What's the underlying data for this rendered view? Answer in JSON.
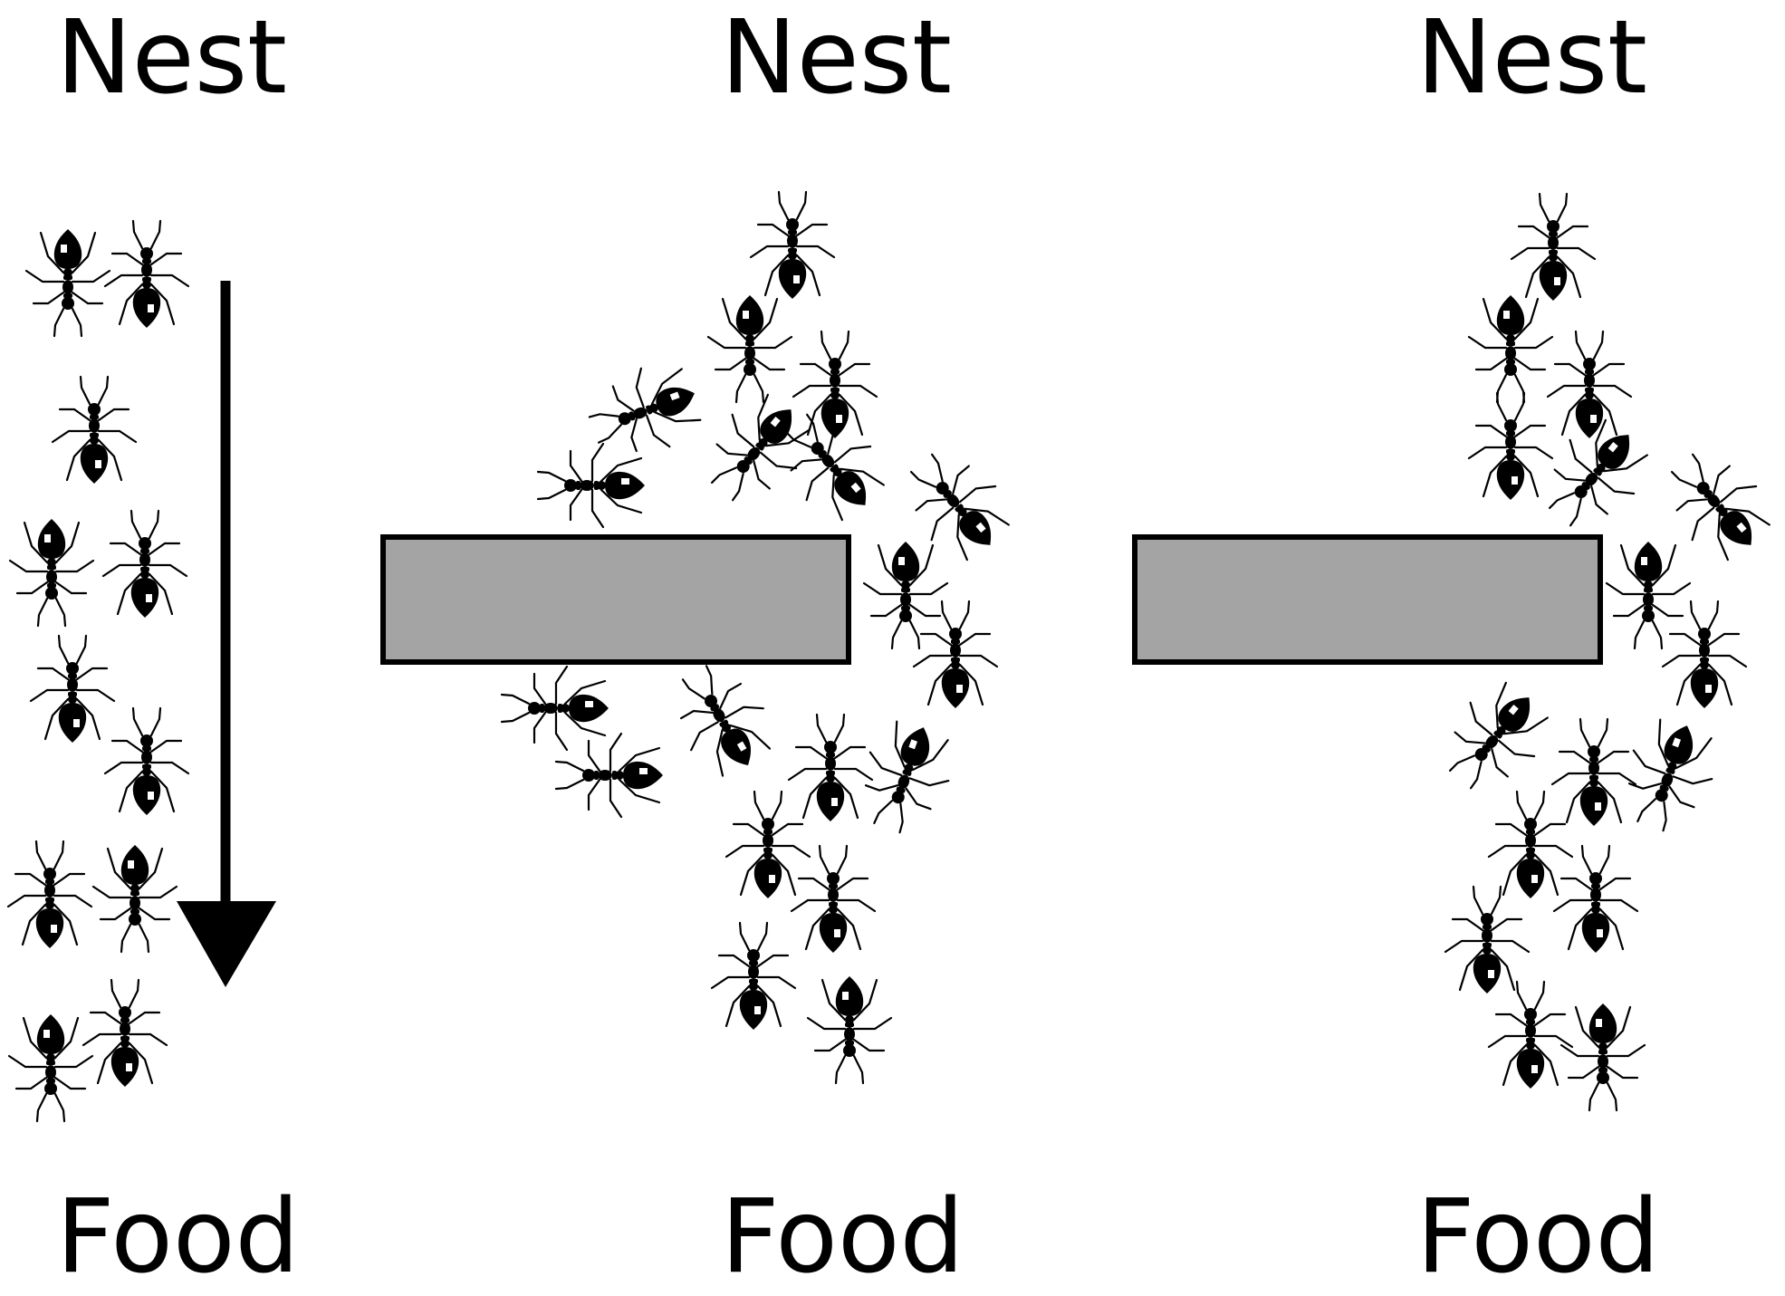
{
  "panels": [
    {
      "top_label": "Nest",
      "bottom_label": "Food",
      "obstacle": false,
      "arrow": true
    },
    {
      "top_label": "Nest",
      "bottom_label": "Food",
      "obstacle": true,
      "arrow": false
    },
    {
      "top_label": "Nest",
      "bottom_label": "Food",
      "obstacle": true,
      "arrow": false
    }
  ],
  "colors": {
    "obstacle_fill": "#a4a4a4",
    "ink": "#000000",
    "background": "#ffffff"
  },
  "icons": {
    "ant": "ant-icon",
    "arrow": "arrow-down-icon"
  }
}
